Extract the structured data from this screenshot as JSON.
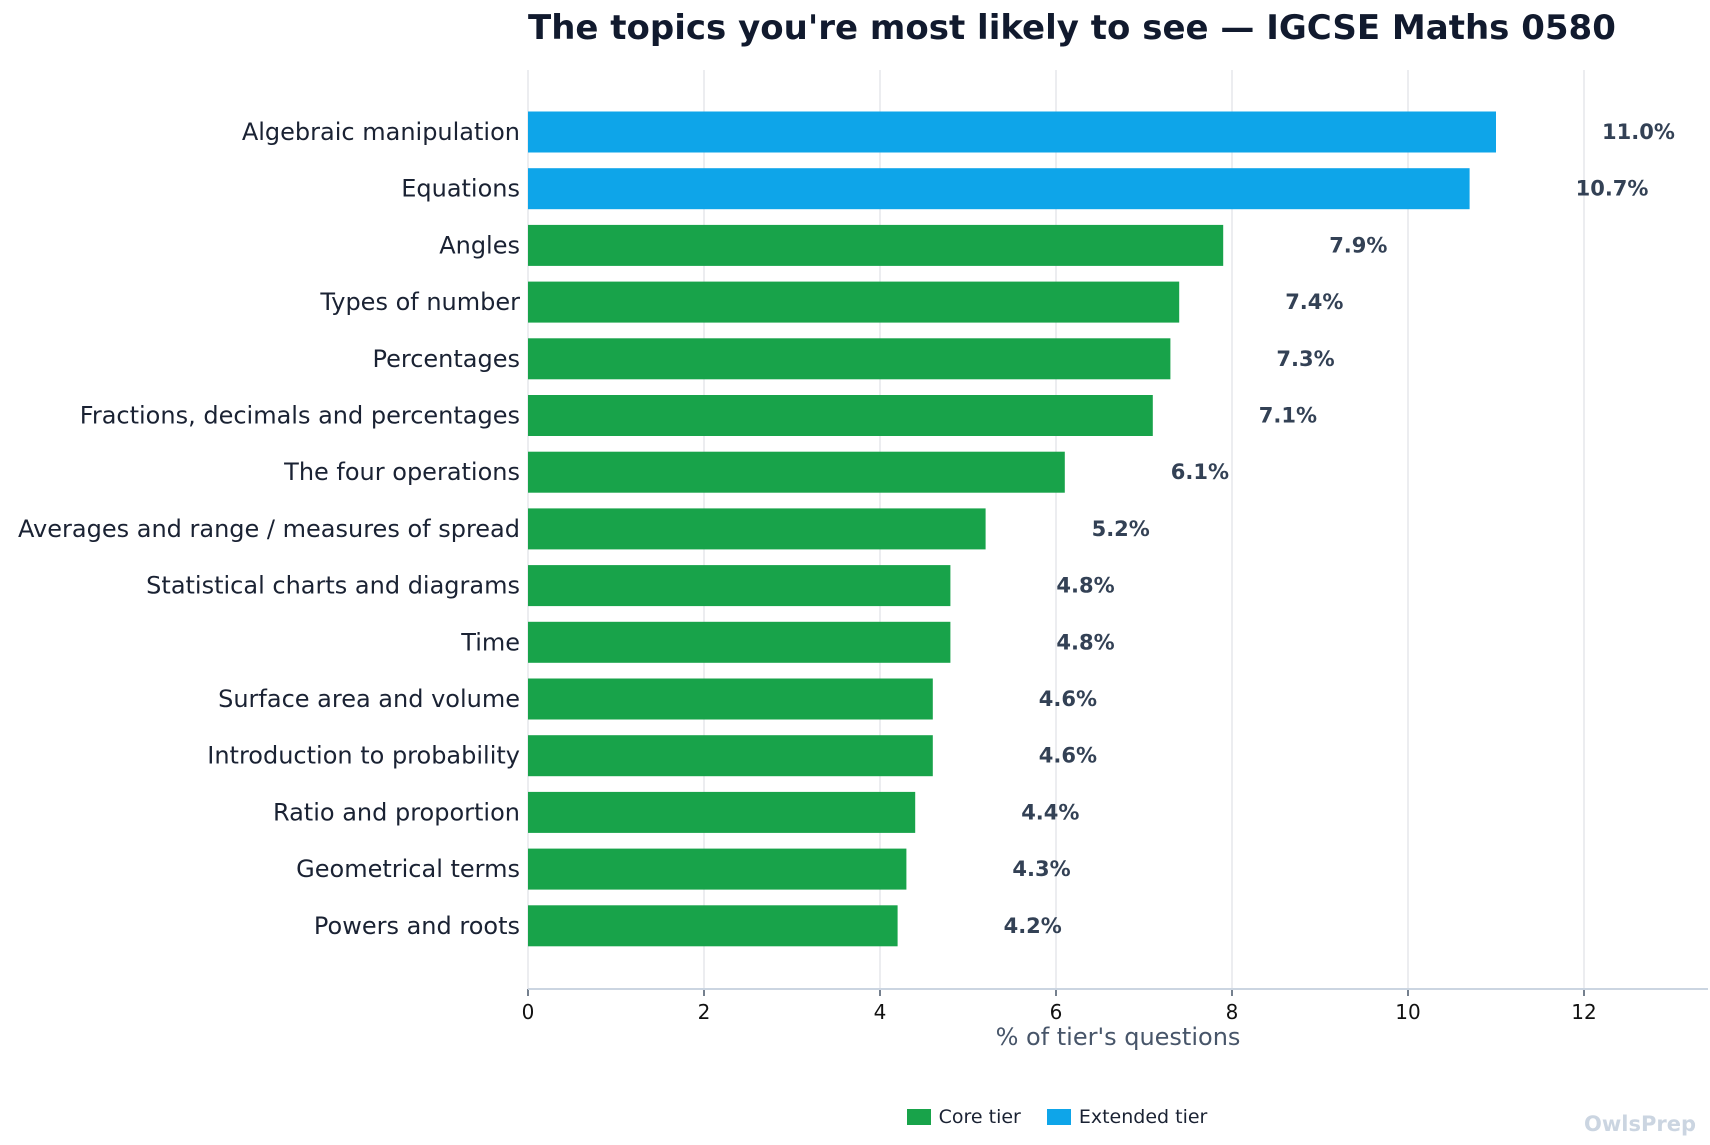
{
  "colors": {
    "core": "#18a34a",
    "extended": "#0ea5e9",
    "grid": "#e5e7eb",
    "axis": "#cbd5e1"
  },
  "chart_data": {
    "type": "bar",
    "orientation": "horizontal",
    "title": "The topics you're most likely to see — IGCSE Maths 0580",
    "xlabel": "% of tier's questions",
    "ylabel": "",
    "xlim": [
      0,
      13.4
    ],
    "xticks": [
      0,
      2,
      4,
      6,
      8,
      10,
      12
    ],
    "grid": "vertical",
    "legend_placement": "bottom-center",
    "categories": [
      "Algebraic manipulation",
      "Equations",
      "Angles",
      "Types of number",
      "Percentages",
      "Fractions, decimals and percentages",
      "The four operations",
      "Averages and range / measures of spread",
      "Statistical charts and diagrams",
      "Time",
      "Surface area and volume",
      "Introduction to probability",
      "Ratio and proportion",
      "Geometrical terms",
      "Powers and roots"
    ],
    "values": [
      11.0,
      10.7,
      7.9,
      7.4,
      7.3,
      7.1,
      6.1,
      5.2,
      4.8,
      4.8,
      4.6,
      4.6,
      4.4,
      4.3,
      4.2
    ],
    "value_labels": [
      "11.0%",
      "10.7%",
      "7.9%",
      "7.4%",
      "7.3%",
      "7.1%",
      "6.1%",
      "5.2%",
      "4.8%",
      "4.8%",
      "4.6%",
      "4.6%",
      "4.4%",
      "4.3%",
      "4.2%"
    ],
    "tier": [
      "Extended tier",
      "Extended tier",
      "Core tier",
      "Core tier",
      "Core tier",
      "Core tier",
      "Core tier",
      "Core tier",
      "Core tier",
      "Core tier",
      "Core tier",
      "Core tier",
      "Core tier",
      "Core tier",
      "Core tier"
    ],
    "legend": [
      {
        "name": "Core tier",
        "color": "#18a34a"
      },
      {
        "name": "Extended tier",
        "color": "#0ea5e9"
      }
    ]
  },
  "watermark": "OwlsPrep"
}
